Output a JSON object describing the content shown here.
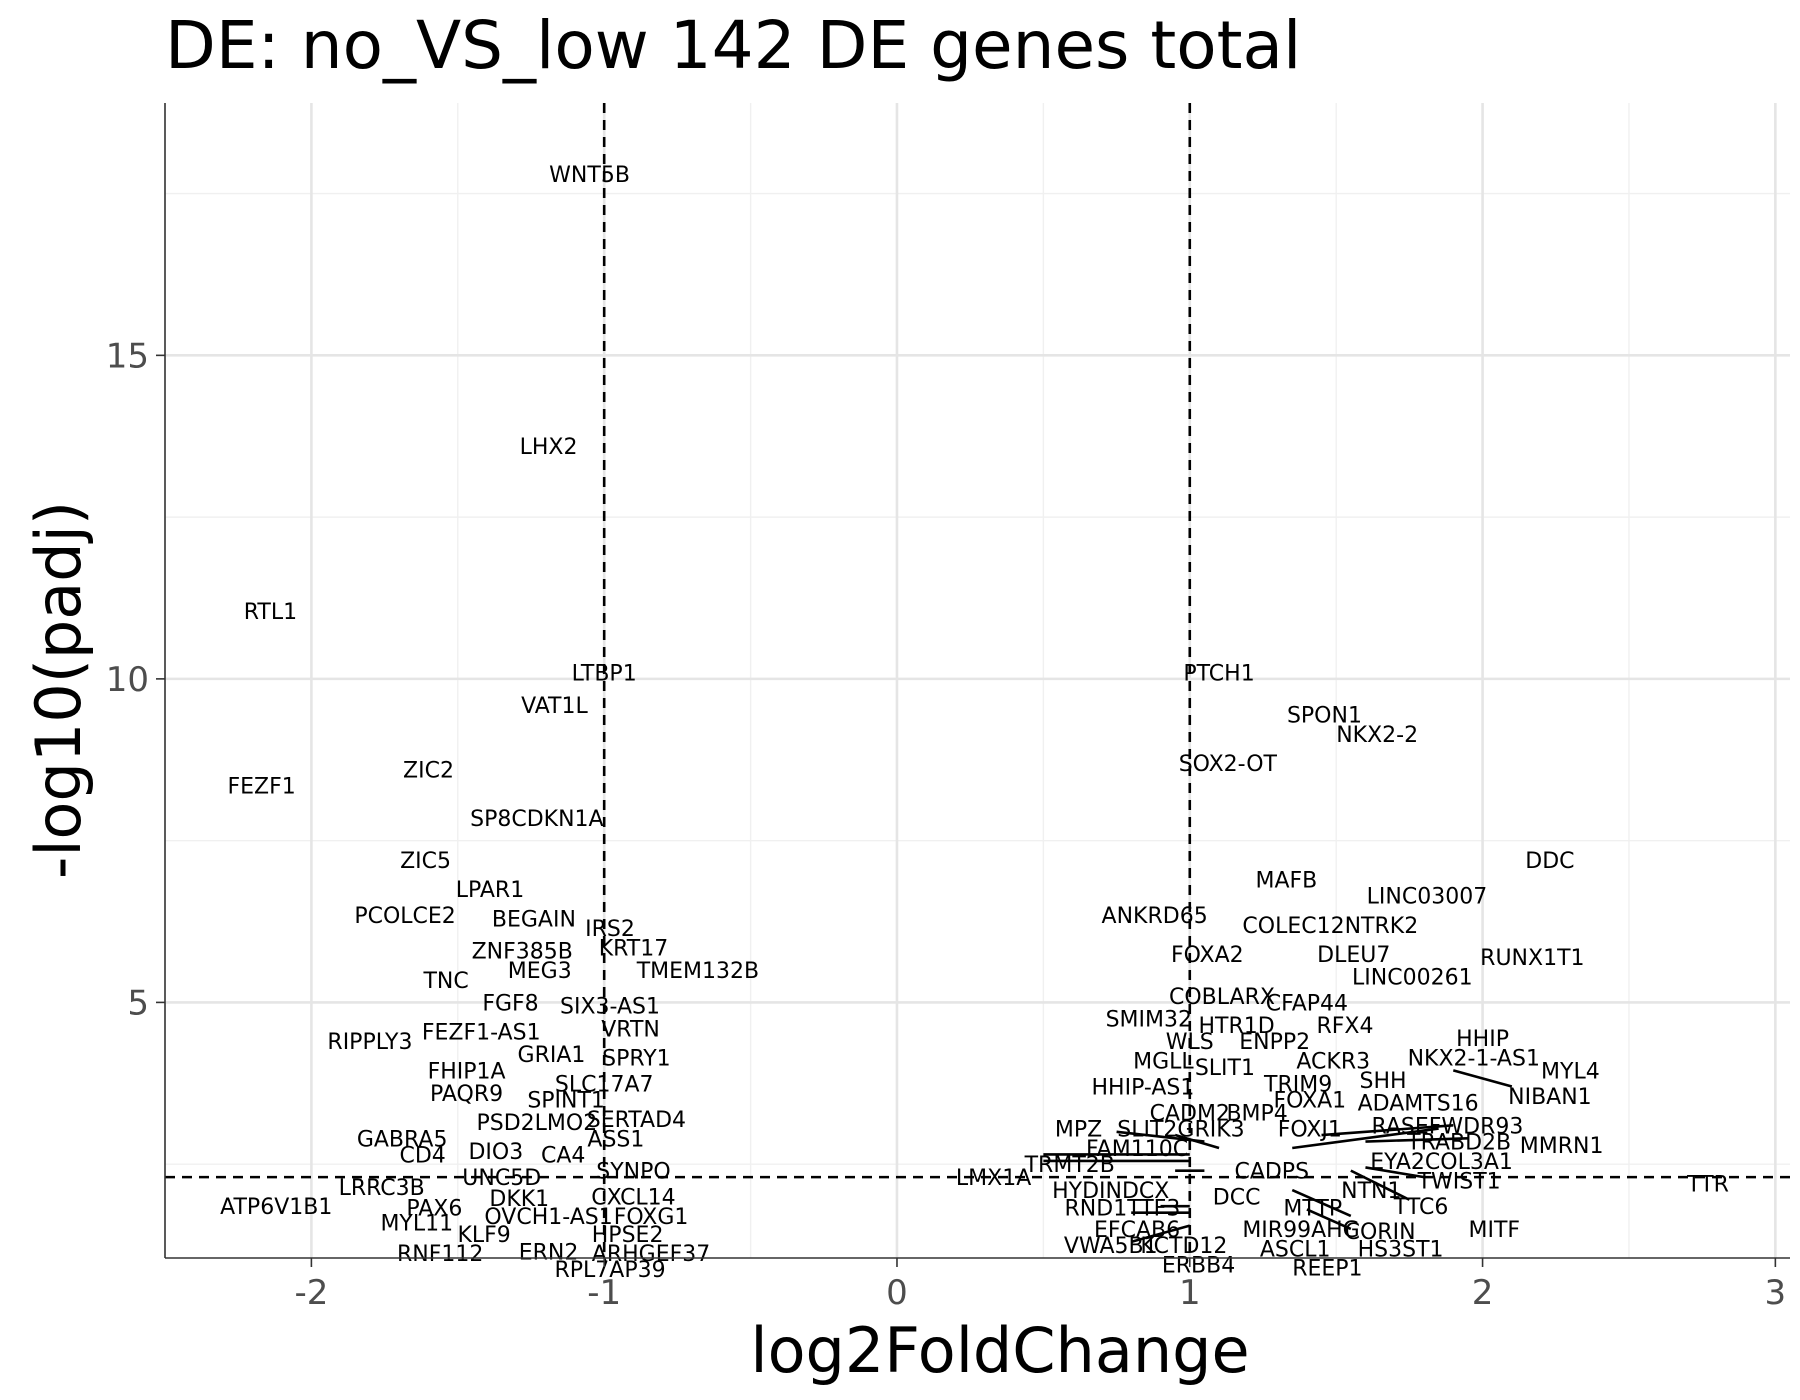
{
  "chart_data": {
    "type": "scatter",
    "title": "DE: no_VS_low 142 DE genes total",
    "xlabel": "log2FoldChange",
    "ylabel": "-log10(padj)",
    "xlim": [
      -2.5,
      3.05
    ],
    "ylim": [
      1.05,
      18.9
    ],
    "x_ticks": [
      -2,
      -1,
      0,
      1,
      2,
      3
    ],
    "x_tick_labels": [
      "-2",
      "-1",
      "0",
      "1",
      "2",
      "3"
    ],
    "y_ticks": [
      5,
      10,
      15
    ],
    "y_tick_labels": [
      "5",
      "10",
      "15"
    ],
    "thresholds": {
      "vlines": [
        -1,
        1
      ],
      "hline": 2.3
    },
    "grid": true,
    "legend": "none",
    "labels": [
      {
        "text": "WNT5B",
        "x": -1.05,
        "y": 17.8
      },
      {
        "text": "LHX2",
        "x": -1.19,
        "y": 13.6
      },
      {
        "text": "RTL1",
        "x": -2.14,
        "y": 11.05
      },
      {
        "text": "LTBP1",
        "x": -1.0,
        "y": 10.1
      },
      {
        "text": "VAT1L",
        "x": -1.17,
        "y": 9.6
      },
      {
        "text": "FEZF1",
        "x": -2.17,
        "y": 8.35
      },
      {
        "text": "ZIC2",
        "x": -1.6,
        "y": 8.6
      },
      {
        "text": "SP8CDKN1A",
        "x": -1.23,
        "y": 7.85
      },
      {
        "text": "ZIC5",
        "x": -1.61,
        "y": 7.2
      },
      {
        "text": "LPAR1",
        "x": -1.39,
        "y": 6.75
      },
      {
        "text": "PCOLCE2",
        "x": -1.68,
        "y": 6.35
      },
      {
        "text": "BEGAIN",
        "x": -1.24,
        "y": 6.3
      },
      {
        "text": "IRS2",
        "x": -0.98,
        "y": 6.15
      },
      {
        "text": "KRT17",
        "x": -0.9,
        "y": 5.85
      },
      {
        "text": "ZNF385B",
        "x": -1.28,
        "y": 5.8
      },
      {
        "text": "MEG3",
        "x": -1.22,
        "y": 5.5
      },
      {
        "text": "TMEM132B",
        "x": -0.68,
        "y": 5.5
      },
      {
        "text": "TNC",
        "x": -1.54,
        "y": 5.35
      },
      {
        "text": "FGF8",
        "x": -1.32,
        "y": 5.0
      },
      {
        "text": "SIX3-AS1",
        "x": -0.98,
        "y": 4.95
      },
      {
        "text": "FEZF1-AS1",
        "x": -1.42,
        "y": 4.55
      },
      {
        "text": "VRTN",
        "x": -0.91,
        "y": 4.6
      },
      {
        "text": "RIPPLY3",
        "x": -1.8,
        "y": 4.4
      },
      {
        "text": "GRIA1",
        "x": -1.18,
        "y": 4.2
      },
      {
        "text": "SPRY1",
        "x": -0.89,
        "y": 4.15
      },
      {
        "text": "FHIP1A",
        "x": -1.47,
        "y": 3.95
      },
      {
        "text": "SLC17A7",
        "x": -1.0,
        "y": 3.75
      },
      {
        "text": "PAQR9",
        "x": -1.47,
        "y": 3.6
      },
      {
        "text": "SPINT1",
        "x": -1.13,
        "y": 3.5
      },
      {
        "text": "PSD2LMO2",
        "x": -1.23,
        "y": 3.15
      },
      {
        "text": "SERTAD4",
        "x": -0.89,
        "y": 3.2
      },
      {
        "text": "GABRA5",
        "x": -1.69,
        "y": 2.9
      },
      {
        "text": "ASS1",
        "x": -0.96,
        "y": 2.9
      },
      {
        "text": "CD4",
        "x": -1.62,
        "y": 2.65
      },
      {
        "text": "DIO3",
        "x": -1.37,
        "y": 2.7
      },
      {
        "text": "CA4",
        "x": -1.14,
        "y": 2.65
      },
      {
        "text": "SYNPO",
        "x": -0.9,
        "y": 2.4
      },
      {
        "text": "UNC5D",
        "x": -1.35,
        "y": 2.3
      },
      {
        "text": "LRRC3B",
        "x": -1.76,
        "y": 2.15
      },
      {
        "text": "CXCL14",
        "x": -0.9,
        "y": 2.0
      },
      {
        "text": "DKK1",
        "x": -1.29,
        "y": 1.98
      },
      {
        "text": "ATP6V1B1",
        "x": -2.12,
        "y": 1.85
      },
      {
        "text": "PAX6",
        "x": -1.58,
        "y": 1.83
      },
      {
        "text": "FOXG1",
        "x": -0.84,
        "y": 1.7
      },
      {
        "text": "OVCH1-AS1",
        "x": -1.19,
        "y": 1.7
      },
      {
        "text": "MYL11",
        "x": -1.64,
        "y": 1.6
      },
      {
        "text": "KLF9",
        "x": -1.41,
        "y": 1.42
      },
      {
        "text": "HPSE2",
        "x": -0.92,
        "y": 1.42
      },
      {
        "text": "RNF112",
        "x": -1.56,
        "y": 1.13
      },
      {
        "text": "ERN2",
        "x": -1.19,
        "y": 1.15
      },
      {
        "text": "ARHGEF37",
        "x": -0.84,
        "y": 1.13
      },
      {
        "text": "RPL7AP39",
        "x": -0.98,
        "y": 0.88
      },
      {
        "text": "PTCH1",
        "x": 1.1,
        "y": 10.1
      },
      {
        "text": "SPON1",
        "x": 1.46,
        "y": 9.45
      },
      {
        "text": "NKX2-2",
        "x": 1.64,
        "y": 9.15
      },
      {
        "text": "SOX2-OT",
        "x": 1.13,
        "y": 8.7
      },
      {
        "text": "DDC",
        "x": 2.23,
        "y": 7.2
      },
      {
        "text": "MAFB",
        "x": 1.33,
        "y": 6.9
      },
      {
        "text": "LINC03007",
        "x": 1.81,
        "y": 6.65
      },
      {
        "text": "ANKRD65",
        "x": 0.88,
        "y": 6.35
      },
      {
        "text": "COLEC12NTRK2",
        "x": 1.48,
        "y": 6.2
      },
      {
        "text": "FOXA2",
        "x": 1.06,
        "y": 5.75
      },
      {
        "text": "DLEU7",
        "x": 1.56,
        "y": 5.75
      },
      {
        "text": "RUNX1T1",
        "x": 2.17,
        "y": 5.7
      },
      {
        "text": "LINC00261",
        "x": 1.76,
        "y": 5.4
      },
      {
        "text": "COBLARX",
        "x": 1.11,
        "y": 5.1
      },
      {
        "text": "CFAP44",
        "x": 1.4,
        "y": 5.0
      },
      {
        "text": "SMIM32",
        "x": 0.86,
        "y": 4.75
      },
      {
        "text": "HTR1D",
        "x": 1.16,
        "y": 4.65
      },
      {
        "text": "RFX4",
        "x": 1.53,
        "y": 4.65
      },
      {
        "text": "HHIP",
        "x": 2.0,
        "y": 4.45
      },
      {
        "text": "WLS",
        "x": 1.0,
        "y": 4.4
      },
      {
        "text": "ENPP2",
        "x": 1.29,
        "y": 4.4
      },
      {
        "text": "NKX2-1-AS1",
        "x": 1.97,
        "y": 4.15
      },
      {
        "text": "MYL4",
        "x": 2.3,
        "y": 3.95
      },
      {
        "text": "MGLL",
        "x": 0.91,
        "y": 4.1
      },
      {
        "text": "SLIT1",
        "x": 1.12,
        "y": 4.0
      },
      {
        "text": "ACKR3",
        "x": 1.49,
        "y": 4.1
      },
      {
        "text": "SHH",
        "x": 1.66,
        "y": 3.8
      },
      {
        "text": "TRIM9",
        "x": 1.37,
        "y": 3.75
      },
      {
        "text": "HHIP-AS1",
        "x": 0.84,
        "y": 3.7
      },
      {
        "text": "NIBAN1",
        "x": 2.23,
        "y": 3.55
      },
      {
        "text": "FOXA1",
        "x": 1.41,
        "y": 3.5
      },
      {
        "text": "ADAMTS16",
        "x": 1.78,
        "y": 3.45
      },
      {
        "text": "CADM2",
        "x": 1.0,
        "y": 3.3
      },
      {
        "text": "BMP4",
        "x": 1.23,
        "y": 3.3
      },
      {
        "text": "FOXJ1",
        "x": 1.41,
        "y": 3.05
      },
      {
        "text": "RASEFWDR93",
        "x": 1.88,
        "y": 3.1
      },
      {
        "text": "MPZ",
        "x": 0.62,
        "y": 3.05
      },
      {
        "text": "SLIT2GRIK3",
        "x": 0.97,
        "y": 3.05
      },
      {
        "text": "TRABD2B",
        "x": 1.92,
        "y": 2.85
      },
      {
        "text": "MMRN1",
        "x": 2.27,
        "y": 2.8
      },
      {
        "text": "FAM110C",
        "x": 0.82,
        "y": 2.75
      },
      {
        "text": "EYA2COL3A1",
        "x": 1.86,
        "y": 2.55
      },
      {
        "text": "TRMT2B",
        "x": 0.59,
        "y": 2.5
      },
      {
        "text": "CADPS",
        "x": 1.28,
        "y": 2.4
      },
      {
        "text": "LMX1A",
        "x": 0.33,
        "y": 2.3
      },
      {
        "text": "TWIST1",
        "x": 1.92,
        "y": 2.25
      },
      {
        "text": "TTR",
        "x": 2.77,
        "y": 2.2
      },
      {
        "text": "HYDINDCX",
        "x": 0.73,
        "y": 2.1
      },
      {
        "text": "DCC",
        "x": 1.16,
        "y": 2.0
      },
      {
        "text": "NTN1",
        "x": 1.62,
        "y": 2.1
      },
      {
        "text": "RND1TTF3",
        "x": 0.77,
        "y": 1.83
      },
      {
        "text": "MTTP",
        "x": 1.42,
        "y": 1.83
      },
      {
        "text": "TTC6",
        "x": 1.79,
        "y": 1.85
      },
      {
        "text": "EFCAB6",
        "x": 0.82,
        "y": 1.5
      },
      {
        "text": "MIR99AHG",
        "x": 1.38,
        "y": 1.5
      },
      {
        "text": "CORIN",
        "x": 1.65,
        "y": 1.47
      },
      {
        "text": "MITF",
        "x": 2.04,
        "y": 1.5
      },
      {
        "text": "VWA5B1",
        "x": 0.73,
        "y": 1.25
      },
      {
        "text": "KCTD12",
        "x": 0.98,
        "y": 1.25
      },
      {
        "text": "ASCL1",
        "x": 1.36,
        "y": 1.2
      },
      {
        "text": "HS3ST1",
        "x": 1.72,
        "y": 1.2
      },
      {
        "text": "ERBB4",
        "x": 1.03,
        "y": 0.95
      },
      {
        "text": "REEP1",
        "x": 1.47,
        "y": 0.9
      }
    ],
    "segments": [
      {
        "x1": 0.5,
        "y1": 2.65,
        "x2": 1.0,
        "y2": 2.65
      },
      {
        "x1": 0.5,
        "y1": 2.55,
        "x2": 1.0,
        "y2": 2.55
      },
      {
        "x1": 0.75,
        "y1": 3.0,
        "x2": 1.05,
        "y2": 2.85
      },
      {
        "x1": 0.95,
        "y1": 2.95,
        "x2": 1.1,
        "y2": 2.75
      },
      {
        "x1": 0.95,
        "y1": 2.4,
        "x2": 1.05,
        "y2": 2.4
      },
      {
        "x1": 0.8,
        "y1": 1.75,
        "x2": 1.0,
        "y2": 1.75
      },
      {
        "x1": 0.9,
        "y1": 1.85,
        "x2": 1.0,
        "y2": 1.85
      },
      {
        "x1": 0.8,
        "y1": 1.3,
        "x2": 1.0,
        "y2": 1.55
      },
      {
        "x1": 1.35,
        "y1": 2.75,
        "x2": 1.85,
        "y2": 3.05
      },
      {
        "x1": 1.45,
        "y1": 2.95,
        "x2": 1.9,
        "y2": 3.1
      },
      {
        "x1": 1.6,
        "y1": 2.85,
        "x2": 1.95,
        "y2": 2.9
      },
      {
        "x1": 1.6,
        "y1": 2.45,
        "x2": 1.8,
        "y2": 2.3
      },
      {
        "x1": 1.55,
        "y1": 2.4,
        "x2": 1.75,
        "y2": 1.95
      },
      {
        "x1": 1.35,
        "y1": 2.1,
        "x2": 1.55,
        "y2": 1.7
      },
      {
        "x1": 1.4,
        "y1": 1.8,
        "x2": 1.55,
        "y2": 1.5
      },
      {
        "x1": 1.9,
        "y1": 3.95,
        "x2": 2.1,
        "y2": 3.7
      }
    ]
  }
}
